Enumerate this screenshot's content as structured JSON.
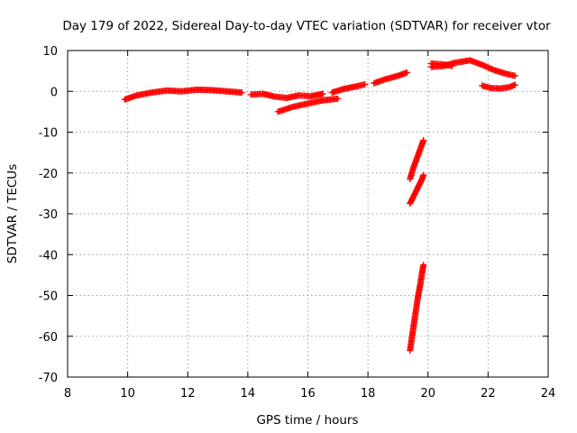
{
  "chart_data": {
    "type": "scatter",
    "title": "Day 179 of 2022, Sidereal Day-to-day VTEC variation (SDTVAR) for receiver vtor",
    "xlabel": "GPS time / hours",
    "ylabel": "SDTVAR / TECUs",
    "xlim": [
      8,
      24
    ],
    "ylim": [
      -70,
      10
    ],
    "xticks": [
      8,
      10,
      12,
      14,
      16,
      18,
      20,
      22,
      24
    ],
    "yticks": [
      10,
      0,
      -10,
      -20,
      -30,
      -40,
      -50,
      -60,
      -70
    ],
    "grid": true,
    "marker": "plus",
    "color": "#ff0000",
    "series": [
      {
        "name": "arc-1",
        "x": [
          9.9,
          10.3,
          10.8,
          11.3,
          11.8,
          12.3,
          12.8,
          13.3,
          13.8
        ],
        "y": [
          -2.0,
          -1.0,
          -0.3,
          0.2,
          0.0,
          0.4,
          0.3,
          0.0,
          -0.3
        ]
      },
      {
        "name": "arc-2",
        "x": [
          14.1,
          14.5,
          14.9,
          15.3,
          15.7,
          16.1,
          16.5
        ],
        "y": [
          -0.8,
          -0.6,
          -1.3,
          -1.6,
          -1.0,
          -1.2,
          -0.6
        ]
      },
      {
        "name": "arc-3",
        "x": [
          15.0,
          15.5,
          16.0,
          16.5,
          17.0
        ],
        "y": [
          -5.0,
          -3.8,
          -3.0,
          -2.2,
          -1.8
        ]
      },
      {
        "name": "arc-4",
        "x": [
          16.8,
          17.2,
          17.6,
          17.9
        ],
        "y": [
          -0.3,
          0.6,
          1.2,
          1.7
        ]
      },
      {
        "name": "arc-5",
        "x": [
          18.2,
          18.6,
          19.0,
          19.3
        ],
        "y": [
          2.0,
          3.0,
          3.8,
          4.6
        ]
      },
      {
        "name": "arc-6",
        "x": [
          20.1,
          20.5,
          20.9,
          21.4,
          21.8,
          22.2,
          22.6,
          22.9
        ],
        "y": [
          6.0,
          6.2,
          7.0,
          7.6,
          6.5,
          5.2,
          4.3,
          3.8
        ]
      },
      {
        "name": "arc-7",
        "x": [
          20.1,
          20.5,
          20.8
        ],
        "y": [
          6.8,
          6.6,
          6.2
        ]
      },
      {
        "name": "arc-8",
        "x": [
          21.8,
          22.1,
          22.4,
          22.7,
          22.9
        ],
        "y": [
          1.4,
          0.8,
          0.7,
          1.0,
          1.6
        ]
      },
      {
        "name": "arc-9",
        "x": [
          19.4,
          19.5,
          19.6,
          19.7,
          19.8,
          19.85
        ],
        "y": [
          -21.5,
          -19.0,
          -17.0,
          -15.0,
          -13.0,
          -12.0
        ]
      },
      {
        "name": "arc-10",
        "x": [
          19.4,
          19.5,
          19.6,
          19.7,
          19.8,
          19.85
        ],
        "y": [
          -27.5,
          -26.0,
          -24.5,
          -23.0,
          -21.5,
          -20.5
        ]
      },
      {
        "name": "arc-11",
        "x": [
          19.4,
          19.45,
          19.5,
          19.55,
          19.6,
          19.65,
          19.7,
          19.75,
          19.8,
          19.85
        ],
        "y": [
          -63.5,
          -61.0,
          -58.5,
          -56.0,
          -53.5,
          -51.0,
          -49.0,
          -47.0,
          -44.5,
          -42.5
        ]
      }
    ]
  }
}
